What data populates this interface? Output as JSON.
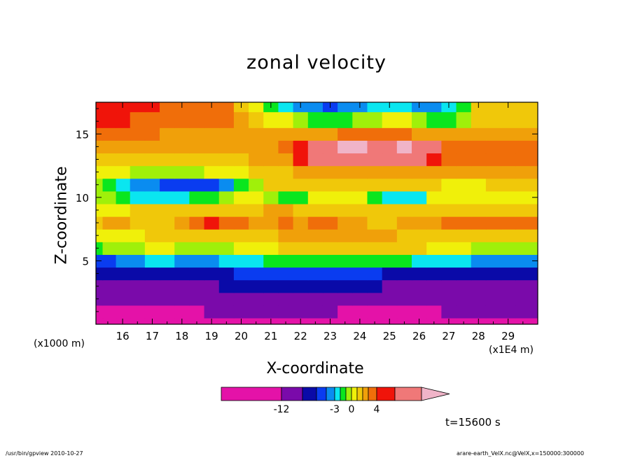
{
  "chart_data": {
    "type": "heatmap",
    "title": "zonal velocity",
    "xlabel": "X-coordinate",
    "ylabel": "Z-coordinate",
    "x_unit_label": "(x1E4 m)",
    "y_unit_label": "(x1000 m)",
    "xlim": [
      15.1,
      30
    ],
    "ylim": [
      0,
      17.5
    ],
    "x_ticks": [
      "16",
      "17",
      "18",
      "19",
      "20",
      "21",
      "22",
      "23",
      "24",
      "25",
      "26",
      "27",
      "28",
      "29"
    ],
    "y_ticks": [
      "5",
      "10",
      "15"
    ],
    "colorbar": {
      "colors": [
        "#e412a8",
        "#7a0aaa",
        "#0a0aa8",
        "#0a3cf0",
        "#0a8cf0",
        "#0ae6f0",
        "#0ae61e",
        "#a0f00a",
        "#f0f00a",
        "#f0c80a",
        "#f0a00a",
        "#f06e0a",
        "#f0140a",
        "#f07878",
        "#f0b4c8"
      ],
      "tick_labels": [
        "-12",
        "-3",
        "0",
        "4"
      ]
    },
    "colormap_levels": [
      -20,
      -12,
      -9,
      -6,
      -4,
      -3,
      -2,
      -1,
      0,
      1,
      2,
      3,
      4,
      6,
      9
    ],
    "x": [
      15.1,
      15.55,
      16.0,
      16.5,
      17.0,
      17.5,
      18.0,
      18.5,
      19.0,
      19.5,
      20.0,
      20.5,
      21.0,
      21.5,
      22.0,
      22.5,
      23.0,
      23.5,
      24.0,
      24.5,
      25.0,
      25.5,
      26.0,
      26.5,
      27.0,
      27.5,
      28.0,
      28.5,
      29.0,
      29.5,
      30.0
    ],
    "z": [
      0,
      1,
      2,
      3,
      4,
      5,
      6,
      7,
      8,
      9,
      10,
      11,
      12,
      13,
      14,
      15,
      16,
      17.5
    ],
    "values": [
      [
        -20,
        -20,
        -20,
        -20,
        -20,
        -20,
        -20,
        -20,
        -20,
        -20,
        -20,
        -20,
        -20,
        -20,
        -20,
        -20,
        -20,
        -20,
        -20,
        -20,
        -20,
        -20,
        -20,
        -20,
        -20,
        -20,
        -20,
        -20,
        -20,
        -20,
        -20
      ],
      [
        -20,
        -20,
        -20,
        -20,
        -20,
        -20,
        -20,
        -20,
        -12,
        -12,
        -12,
        -12,
        -12,
        -12,
        -12,
        -12,
        -12,
        -20,
        -20,
        -20,
        -20,
        -20,
        -20,
        -20,
        -12,
        -12,
        -12,
        -12,
        -12,
        -12,
        -12
      ],
      [
        -12,
        -12,
        -12,
        -12,
        -12,
        -12,
        -12,
        -12,
        -12,
        -12,
        -12,
        -12,
        -12,
        -12,
        -12,
        -12,
        -12,
        -12,
        -12,
        -12,
        -12,
        -12,
        -12,
        -12,
        -12,
        -12,
        -12,
        -12,
        -12,
        -12,
        -12
      ],
      [
        -12,
        -12,
        -12,
        -12,
        -12,
        -12,
        -12,
        -12,
        -12,
        -9,
        -9,
        -9,
        -9,
        -9,
        -9,
        -9,
        -9,
        -9,
        -9,
        -9,
        -12,
        -12,
        -12,
        -12,
        -12,
        -12,
        -12,
        -12,
        -12,
        -12,
        -12
      ],
      [
        -9,
        -9,
        -9,
        -9,
        -9,
        -9,
        -9,
        -9,
        -9,
        -9,
        -6,
        -6,
        -6,
        -6,
        -6,
        -6,
        -6,
        -6,
        -6,
        -6,
        -9,
        -9,
        -9,
        -9,
        -9,
        -9,
        -9,
        -9,
        -9,
        -9,
        -9
      ],
      [
        -6,
        -6,
        -4,
        -4,
        -3,
        -3,
        -4,
        -4,
        -4,
        -3,
        -3,
        -3,
        -2,
        -2,
        -2,
        -2,
        -2,
        -2,
        -2,
        -2,
        -2,
        -2,
        -3,
        -3,
        -3,
        -3,
        -4,
        -4,
        -4,
        -4,
        -4
      ],
      [
        -2,
        -1,
        -1,
        -1,
        0,
        0,
        -1,
        -1,
        -1,
        -1,
        0,
        0,
        0,
        1,
        1,
        1,
        1,
        1,
        1,
        1,
        1,
        1,
        1,
        0,
        0,
        0,
        -1,
        -1,
        -1,
        -1,
        -1
      ],
      [
        0,
        0,
        0,
        0,
        1,
        1,
        1,
        1,
        1,
        1,
        1,
        1,
        1,
        2,
        2,
        2,
        2,
        2,
        2,
        2,
        2,
        1,
        1,
        1,
        1,
        1,
        1,
        1,
        1,
        1,
        1
      ],
      [
        1,
        2,
        2,
        1,
        1,
        1,
        2,
        3,
        4,
        3,
        3,
        2,
        2,
        3,
        2,
        3,
        3,
        2,
        2,
        1,
        1,
        2,
        2,
        2,
        3,
        3,
        3,
        3,
        3,
        3,
        3
      ],
      [
        0,
        0,
        0,
        1,
        1,
        1,
        1,
        1,
        1,
        1,
        1,
        1,
        2,
        2,
        1,
        1,
        1,
        1,
        1,
        1,
        1,
        1,
        1,
        1,
        1,
        1,
        1,
        1,
        1,
        1,
        1
      ],
      [
        -1,
        -1,
        -2,
        -3,
        -3,
        -3,
        -3,
        -2,
        -2,
        -1,
        0,
        0,
        -1,
        -2,
        -2,
        0,
        0,
        0,
        0,
        -2,
        -3,
        -3,
        -3,
        0,
        0,
        0,
        0,
        0,
        0,
        0,
        0
      ],
      [
        -1,
        -2,
        -3,
        -4,
        -4,
        -6,
        -6,
        -6,
        -6,
        -4,
        -2,
        -1,
        1,
        1,
        1,
        1,
        1,
        1,
        1,
        1,
        1,
        1,
        1,
        1,
        0,
        0,
        0,
        1,
        1,
        1,
        1
      ],
      [
        0,
        0,
        0,
        -1,
        -1,
        -1,
        -1,
        -1,
        0,
        0,
        0,
        1,
        1,
        1,
        2,
        2,
        2,
        2,
        2,
        2,
        2,
        2,
        2,
        2,
        2,
        2,
        2,
        2,
        2,
        2,
        2
      ],
      [
        1,
        1,
        1,
        1,
        1,
        1,
        1,
        1,
        1,
        1,
        1,
        2,
        2,
        2,
        4,
        6,
        6,
        6,
        6,
        6,
        6,
        6,
        6,
        4,
        3,
        3,
        3,
        3,
        3,
        3,
        3
      ],
      [
        2,
        2,
        2,
        2,
        2,
        2,
        2,
        2,
        2,
        2,
        2,
        2,
        2,
        3,
        4,
        6,
        6,
        9,
        9,
        6,
        6,
        9,
        6,
        6,
        3,
        3,
        3,
        3,
        3,
        3,
        3
      ],
      [
        3,
        3,
        3,
        3,
        3,
        2,
        2,
        2,
        2,
        2,
        2,
        2,
        2,
        2,
        2,
        2,
        2,
        3,
        3,
        3,
        3,
        3,
        2,
        2,
        2,
        2,
        2,
        2,
        2,
        2,
        2
      ],
      [
        4,
        4,
        4,
        3,
        3,
        3,
        3,
        3,
        3,
        3,
        2,
        1,
        0,
        0,
        -1,
        -2,
        -2,
        -2,
        -1,
        -1,
        0,
        0,
        -1,
        -2,
        -2,
        -1,
        1,
        1,
        1,
        1,
        1
      ],
      [
        4,
        4,
        4,
        4,
        4,
        3,
        3,
        3,
        3,
        3,
        1,
        0,
        -2,
        -3,
        -4,
        -4,
        -6,
        -4,
        -4,
        -3,
        -3,
        -3,
        -4,
        -4,
        -3,
        -2,
        1,
        1,
        1,
        1,
        1
      ]
    ]
  },
  "annotations": {
    "time_label": "t=15600 s",
    "footer_left": "/usr/bin/gpview   2010-10-27",
    "footer_right": "arare-earth_VelX.nc@VelX,x=150000:300000"
  }
}
